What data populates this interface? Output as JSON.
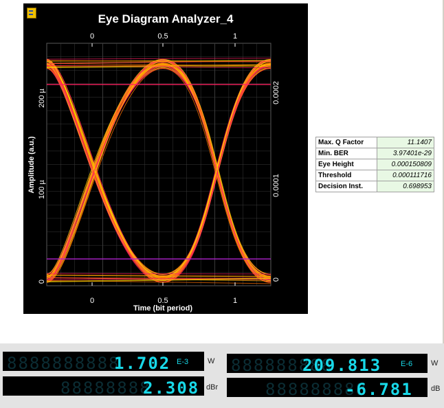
{
  "window": {
    "title": "Eye Diagram Analyzer_4"
  },
  "plot": {
    "xlabel": "Time (bit period)",
    "ylabel": "Amplitude (a.u.)",
    "top_ticks": [
      "0",
      "0.5",
      "1"
    ],
    "bottom_ticks": [
      "0",
      "0.5",
      "1"
    ],
    "left_ticks": [
      "200 µ",
      "100 µ",
      "0"
    ],
    "right_ticks": [
      "0.0002",
      "0.0001",
      "0"
    ],
    "colors": {
      "background": "#000000",
      "grid": "#3a3a3a",
      "trace_hot": "#ffd000",
      "trace_mid": "#ff7000",
      "trace_warm": "#ff2060",
      "trace_cool": "#b020d0"
    }
  },
  "results": [
    {
      "label": "Max. Q Factor",
      "value": "11.1407"
    },
    {
      "label": "Min. BER",
      "value": "3.97401e-29"
    },
    {
      "label": "Eye Height",
      "value": "0.000150809"
    },
    {
      "label": "Threshold",
      "value": "0.000111716"
    },
    {
      "label": "Decision Inst.",
      "value": "0.698953"
    }
  ],
  "meters": [
    {
      "name": "power-w-left",
      "ghost": "8888888888",
      "value": "1.702",
      "exp": "E-3",
      "unit": "W"
    },
    {
      "name": "power-dbr",
      "ghost": "88888888",
      "value": "2.308",
      "exp": "",
      "unit": "dBr"
    },
    {
      "name": "power-w-right",
      "ghost": "888888888",
      "value": "209.813",
      "exp": "E-6",
      "unit": "W"
    },
    {
      "name": "power-db",
      "ghost": "888888888",
      "value": "-6.781",
      "exp": "",
      "unit": "dB"
    }
  ]
}
